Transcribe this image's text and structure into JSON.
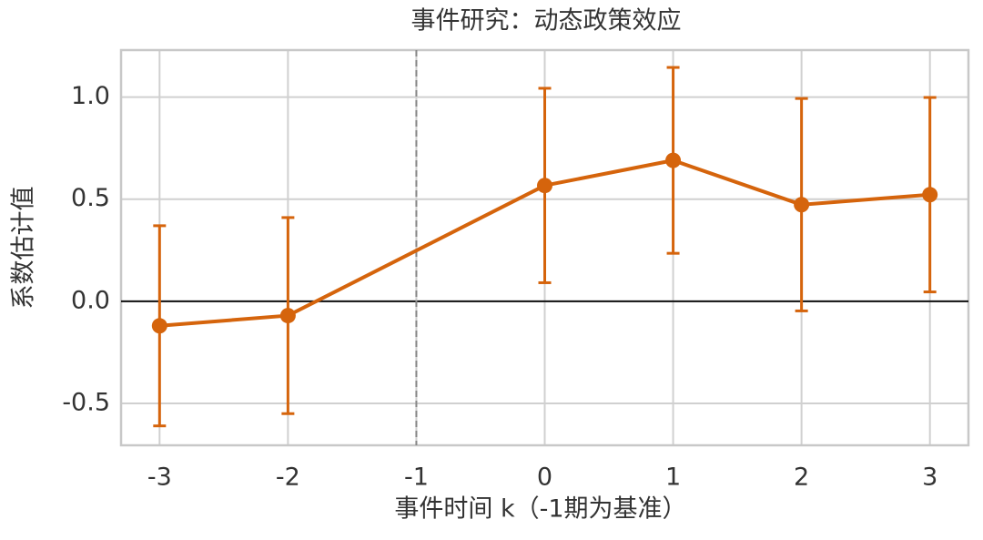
{
  "chart_data": {
    "type": "errorbar-line",
    "title": "事件研究：动态政策效应",
    "xlabel": "事件时间 k（-1期为基准）",
    "ylabel": "系数估计值",
    "x": [
      -3,
      -2,
      0,
      1,
      2,
      3
    ],
    "values": [
      -0.12,
      -0.07,
      0.567,
      0.69,
      0.473,
      0.522
    ],
    "errors": [
      0.49,
      0.48,
      0.476,
      0.455,
      0.52,
      0.476
    ],
    "color": "#d5640c",
    "xlim": [
      -3.3,
      3.3
    ],
    "ylim": [
      -0.705,
      1.23
    ],
    "xticks": [
      -3,
      -2,
      -1,
      0,
      1,
      2,
      3
    ],
    "yticks": [
      -0.5,
      {
        "value": 0,
        "label": "0.0"
      },
      0.5,
      {
        "value": 1,
        "label": "1.0"
      }
    ],
    "hline": 0,
    "vline": -1,
    "grid": true
  }
}
